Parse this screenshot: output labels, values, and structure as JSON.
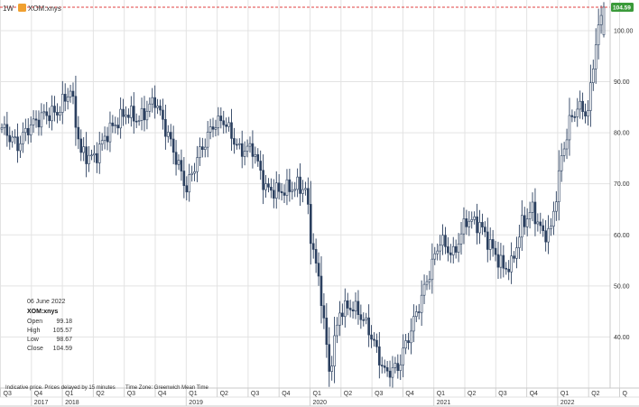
{
  "header": {
    "interval": "1W",
    "symbol_badge": "",
    "symbol": "XOM:xnys"
  },
  "info_panel": {
    "date": "06 June 2022",
    "symbol": "XOM:xnys",
    "rows": [
      {
        "label": "Open",
        "value": "99.18"
      },
      {
        "label": "High",
        "value": "105.57"
      },
      {
        "label": "Low",
        "value": "98.67"
      },
      {
        "label": "Close",
        "value": "104.59"
      }
    ]
  },
  "footer": {
    "note": "Indicative price. Prices delayed by 15 minutes",
    "timezone": "Time Zone: Greenwich Mean Time"
  },
  "colors": {
    "candle": "#2a3f5f",
    "last_price_box": "#3a9a3a",
    "last_price_line": "#e04040",
    "grid": "#e3e3e3"
  },
  "chart_data": {
    "type": "candlestick",
    "interval": "weekly",
    "ylim": [
      30,
      106
    ],
    "y_ticks": [
      "40.00",
      "50.00",
      "60.00",
      "70.00",
      "80.00",
      "90.00",
      "100.00"
    ],
    "y_tick_values": [
      40,
      50,
      60,
      70,
      80,
      90,
      100
    ],
    "quarter_labels": [
      "Q3",
      "Q4",
      "Q1",
      "Q2",
      "Q3",
      "Q4",
      "Q1",
      "Q2",
      "Q3",
      "Q4",
      "Q1",
      "Q2",
      "Q3",
      "Q4",
      "Q1",
      "Q2",
      "Q3",
      "Q4",
      "Q1",
      "Q2",
      "Q"
    ],
    "year_labels": [
      {
        "label": "2017",
        "quarter_index": 1
      },
      {
        "label": "2018",
        "quarter_index": 2
      },
      {
        "label": "2019",
        "quarter_index": 6
      },
      {
        "label": "2020",
        "quarter_index": 10
      },
      {
        "label": "2021",
        "quarter_index": 14
      },
      {
        "label": "2022",
        "quarter_index": 18
      }
    ],
    "last_price": "104.59",
    "last_value": 104.59,
    "path_anchors": [
      [
        0,
        81
      ],
      [
        6,
        77.5
      ],
      [
        10,
        81
      ],
      [
        16,
        83.5
      ],
      [
        21,
        84
      ],
      [
        26,
        88.5
      ],
      [
        30,
        76
      ],
      [
        35,
        75
      ],
      [
        40,
        80
      ],
      [
        47,
        84
      ],
      [
        52,
        82.5
      ],
      [
        58,
        86.5
      ],
      [
        64,
        78
      ],
      [
        70,
        69
      ],
      [
        74,
        75
      ],
      [
        80,
        81.5
      ],
      [
        84,
        82.5
      ],
      [
        90,
        76.5
      ],
      [
        95,
        77
      ],
      [
        100,
        69
      ],
      [
        105,
        68.5
      ],
      [
        112,
        69.5
      ],
      [
        115,
        69
      ],
      [
        117,
        60
      ],
      [
        121,
        48
      ],
      [
        124,
        33
      ],
      [
        128,
        45
      ],
      [
        132,
        46
      ],
      [
        135,
        45
      ],
      [
        139,
        41.5
      ],
      [
        145,
        33
      ],
      [
        150,
        34
      ],
      [
        156,
        43
      ],
      [
        161,
        51
      ],
      [
        166,
        59
      ],
      [
        171,
        56
      ],
      [
        176,
        63
      ],
      [
        181,
        62
      ],
      [
        186,
        57
      ],
      [
        190,
        53.5
      ],
      [
        193,
        54
      ],
      [
        197,
        62
      ],
      [
        201,
        65
      ],
      [
        205,
        60
      ],
      [
        208,
        61
      ],
      [
        212,
        75
      ],
      [
        215,
        82
      ],
      [
        218,
        85
      ],
      [
        222,
        84
      ],
      [
        225,
        98
      ],
      [
        228,
        104.6
      ]
    ]
  }
}
